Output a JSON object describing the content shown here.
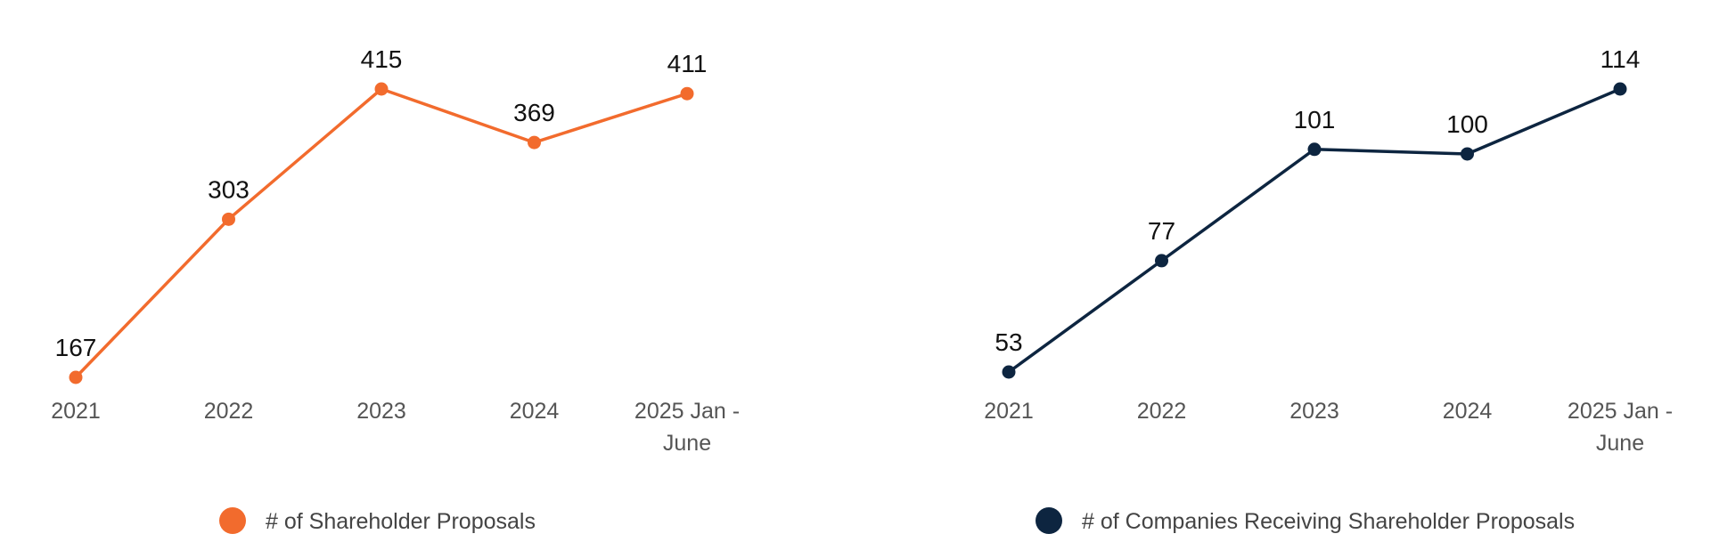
{
  "chart_data": [
    {
      "type": "line",
      "title": "",
      "xlabel": "",
      "ylabel": "",
      "categories": [
        "2021",
        "2022",
        "2023",
        "2024",
        "2025 Jan - June"
      ],
      "series": [
        {
          "name": "# of Shareholder Proposals",
          "values": [
            167,
            303,
            415,
            369,
            411
          ],
          "color": "#F26B2D"
        }
      ],
      "ylim": [
        160,
        420
      ],
      "grid": false,
      "legend": "bottom",
      "data_labels": [
        "167",
        "303",
        "415",
        "369",
        "411"
      ]
    },
    {
      "type": "line",
      "title": "",
      "xlabel": "",
      "ylabel": "",
      "categories": [
        "2021",
        "2022",
        "2023",
        "2024",
        "2025 Jan - June"
      ],
      "series": [
        {
          "name": "# of Companies Receiving Shareholder Proposals",
          "values": [
            53,
            77,
            101,
            100,
            114
          ],
          "color": "#0D2540"
        }
      ],
      "ylim": [
        50,
        115
      ],
      "grid": false,
      "legend": "bottom",
      "data_labels": [
        "53",
        "77",
        "101",
        "100",
        "114"
      ]
    }
  ]
}
